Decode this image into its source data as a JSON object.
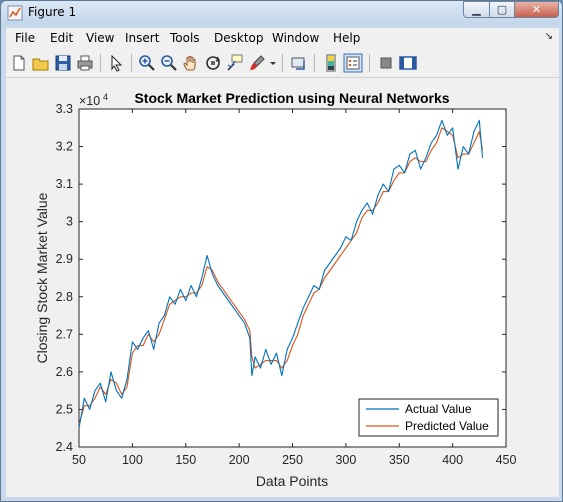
{
  "window": {
    "title": "Figure 1",
    "controls": {
      "minimize": "▁",
      "maximize": "▢",
      "close": "✕"
    }
  },
  "menubar": {
    "items": [
      "File",
      "Edit",
      "View",
      "Insert",
      "Tools",
      "Desktop",
      "Window",
      "Help"
    ],
    "expand_glyph": "↘"
  },
  "toolbar": {
    "icons": [
      "new-figure-icon",
      "open-file-icon",
      "save-icon",
      "print-icon",
      "edit-plot-arrow-icon",
      "zoom-in-icon",
      "zoom-out-icon",
      "pan-hand-icon",
      "rotate-3d-icon",
      "data-cursor-icon",
      "brush-icon",
      "link-plot-icon",
      "insert-colorbar-icon",
      "insert-legend-icon",
      "hide-plot-tools-icon",
      "show-plot-tools-icon"
    ]
  },
  "colors": {
    "actual": "#0072BD",
    "predicted": "#D95319",
    "window_frame": "#c9d8ea",
    "figure_bg": "#f0f0f0"
  },
  "chart_data": {
    "type": "line",
    "title": "Stock Market Prediction using Neural Networks",
    "xlabel": "Data Points",
    "ylabel": "Closing Stock Market Value",
    "exponent_label": "×10",
    "exponent_power": "4",
    "xlim": [
      50,
      450
    ],
    "ylim": [
      2.4,
      3.3
    ],
    "y_scale_note": "values in units of 10^4",
    "xticks": [
      50,
      100,
      150,
      200,
      250,
      300,
      350,
      400,
      450
    ],
    "yticks": [
      2.4,
      2.5,
      2.6,
      2.7,
      2.8,
      2.9,
      3.0,
      3.1,
      3.2,
      3.3
    ],
    "ytick_labels": [
      "2.4",
      "2.5",
      "2.6",
      "2.7",
      "2.8",
      "2.9",
      "3",
      "3.1",
      "3.2",
      "3.3"
    ],
    "grid": false,
    "legend_position": "bottom-right",
    "series": [
      {
        "name": "Actual Value",
        "x": [
          50,
          55,
          60,
          65,
          70,
          75,
          80,
          85,
          90,
          95,
          100,
          105,
          110,
          115,
          120,
          125,
          130,
          135,
          140,
          145,
          150,
          155,
          160,
          165,
          170,
          175,
          180,
          185,
          190,
          195,
          200,
          205,
          210,
          212,
          215,
          220,
          225,
          230,
          235,
          240,
          245,
          250,
          255,
          260,
          265,
          270,
          275,
          280,
          285,
          290,
          295,
          300,
          305,
          310,
          315,
          320,
          325,
          330,
          335,
          340,
          345,
          350,
          355,
          360,
          365,
          370,
          375,
          380,
          385,
          390,
          395,
          400,
          405,
          410,
          415,
          420,
          425,
          428
        ],
        "y": [
          2.45,
          2.53,
          2.5,
          2.55,
          2.57,
          2.52,
          2.6,
          2.55,
          2.53,
          2.58,
          2.68,
          2.66,
          2.69,
          2.71,
          2.66,
          2.73,
          2.75,
          2.8,
          2.78,
          2.82,
          2.79,
          2.83,
          2.8,
          2.85,
          2.91,
          2.86,
          2.83,
          2.81,
          2.79,
          2.77,
          2.75,
          2.73,
          2.69,
          2.59,
          2.64,
          2.61,
          2.66,
          2.62,
          2.65,
          2.59,
          2.66,
          2.69,
          2.73,
          2.77,
          2.8,
          2.83,
          2.82,
          2.87,
          2.89,
          2.91,
          2.93,
          2.96,
          2.95,
          3.0,
          3.03,
          3.05,
          3.02,
          3.07,
          3.1,
          3.08,
          3.14,
          3.15,
          3.13,
          3.18,
          3.19,
          3.14,
          3.17,
          3.21,
          3.23,
          3.27,
          3.23,
          3.25,
          3.14,
          3.2,
          3.18,
          3.24,
          3.27,
          3.17
        ]
      },
      {
        "name": "Predicted Value",
        "x": [
          50,
          55,
          60,
          65,
          70,
          75,
          80,
          85,
          90,
          95,
          100,
          105,
          110,
          115,
          120,
          125,
          130,
          135,
          140,
          145,
          150,
          155,
          160,
          165,
          170,
          175,
          180,
          185,
          190,
          195,
          200,
          205,
          210,
          212,
          215,
          220,
          225,
          230,
          235,
          240,
          245,
          250,
          255,
          260,
          265,
          270,
          275,
          280,
          285,
          290,
          295,
          300,
          305,
          310,
          315,
          320,
          325,
          330,
          335,
          340,
          345,
          350,
          355,
          360,
          365,
          370,
          375,
          380,
          385,
          390,
          395,
          400,
          405,
          410,
          415,
          420,
          425,
          428
        ],
        "y": [
          2.46,
          2.51,
          2.51,
          2.53,
          2.56,
          2.54,
          2.58,
          2.57,
          2.54,
          2.56,
          2.65,
          2.67,
          2.67,
          2.7,
          2.68,
          2.7,
          2.74,
          2.78,
          2.79,
          2.8,
          2.8,
          2.81,
          2.81,
          2.83,
          2.88,
          2.87,
          2.84,
          2.82,
          2.8,
          2.78,
          2.76,
          2.74,
          2.71,
          2.64,
          2.61,
          2.62,
          2.63,
          2.63,
          2.63,
          2.61,
          2.63,
          2.67,
          2.7,
          2.75,
          2.78,
          2.81,
          2.82,
          2.85,
          2.87,
          2.89,
          2.91,
          2.93,
          2.95,
          2.97,
          3.01,
          3.03,
          3.03,
          3.05,
          3.08,
          3.08,
          3.11,
          3.13,
          3.13,
          3.16,
          3.17,
          3.16,
          3.16,
          3.19,
          3.21,
          3.25,
          3.24,
          3.23,
          3.17,
          3.18,
          3.18,
          3.21,
          3.24,
          3.19
        ]
      }
    ]
  }
}
